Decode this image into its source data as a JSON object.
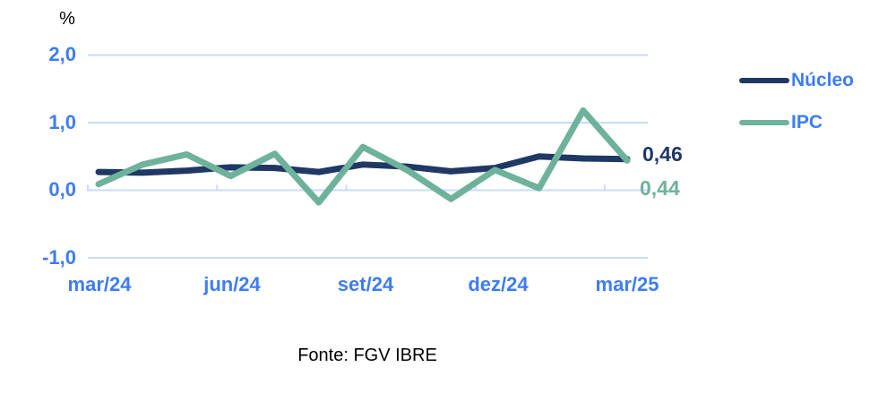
{
  "unit_label": "%",
  "source_text": "Fonte: FGV IBRE",
  "colors": {
    "nucleo_line": "#1F3864",
    "ipc_line": "#6EB29B",
    "axis_text": "#3D7CF5",
    "gridline": "#C7DCF6",
    "value_label_nucleo": "#1F3864",
    "value_label_ipc": "#6EB29B",
    "source_text": "#000000"
  },
  "legend": {
    "items": [
      {
        "label": "Núcleo",
        "color": "#1F3864"
      },
      {
        "label": "IPC",
        "color": "#6EB29B"
      }
    ]
  },
  "end_labels": {
    "nucleo": "0,46",
    "ipc": "0,44"
  },
  "chart_data": {
    "type": "line",
    "title": "",
    "ylabel": "%",
    "xlabel": "",
    "grid": true,
    "legend_position": "right",
    "ylim": [
      -1.0,
      2.0
    ],
    "y_ticks": [
      2.0,
      1.0,
      0.0,
      -1.0
    ],
    "y_tick_labels": [
      "2,0",
      "1,0",
      "0,0",
      "-1,0"
    ],
    "x": [
      "mar/24",
      "abr/24",
      "mai/24",
      "jun/24",
      "jul/24",
      "ago/24",
      "set/24",
      "out/24",
      "nov/24",
      "dez/24",
      "jan/25",
      "fev/25",
      "mar/25"
    ],
    "x_tick_labels": [
      "mar/24",
      "jun/24",
      "set/24",
      "dez/24",
      "mar/25"
    ],
    "series": [
      {
        "name": "Núcleo",
        "color": "#1F3864",
        "values": [
          0.27,
          0.26,
          0.29,
          0.34,
          0.33,
          0.27,
          0.38,
          0.35,
          0.28,
          0.33,
          0.5,
          0.47,
          0.46
        ],
        "last_value_label": "0,46"
      },
      {
        "name": "IPC",
        "color": "#6EB29B",
        "values": [
          0.09,
          0.38,
          0.53,
          0.21,
          0.54,
          -0.18,
          0.64,
          0.3,
          -0.13,
          0.3,
          0.03,
          1.18,
          0.44
        ],
        "last_value_label": "0,44"
      }
    ]
  }
}
